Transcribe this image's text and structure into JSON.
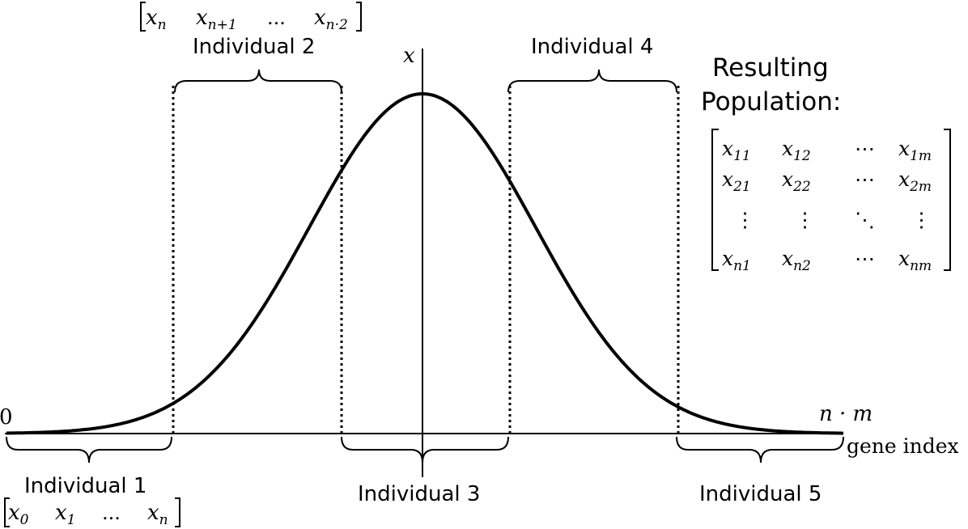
{
  "axes": {
    "y_label": "x",
    "x_label": "gene index",
    "origin_label": "0",
    "end_label": "n · m"
  },
  "individuals": [
    {
      "label": "Individual 1",
      "vector": [
        "x",
        "0",
        "x",
        "1",
        "...",
        "x",
        "n"
      ]
    },
    {
      "label": "Individual 2",
      "vector": [
        "x",
        "n",
        "x",
        "n+1",
        "...",
        "x",
        "n·2"
      ]
    },
    {
      "label": "Individual 3"
    },
    {
      "label": "Individual 4"
    },
    {
      "label": "Individual 5"
    }
  ],
  "population": {
    "title_line1": "Resulting",
    "title_line2": "Population:",
    "matrix": [
      [
        [
          "x",
          "11"
        ],
        [
          "x",
          "12"
        ],
        [
          "⋯",
          ""
        ],
        [
          "x",
          "1m"
        ]
      ],
      [
        [
          "x",
          "21"
        ],
        [
          "x",
          "22"
        ],
        [
          "⋯",
          ""
        ],
        [
          "x",
          "2m"
        ]
      ],
      [
        [
          "⋮",
          ""
        ],
        [
          "⋮",
          ""
        ],
        [
          "⋱",
          ""
        ],
        [
          "⋮",
          ""
        ]
      ],
      [
        [
          "x",
          "n1"
        ],
        [
          "x",
          "n2"
        ],
        [
          "⋯",
          ""
        ],
        [
          "x",
          "nm"
        ]
      ]
    ]
  }
}
